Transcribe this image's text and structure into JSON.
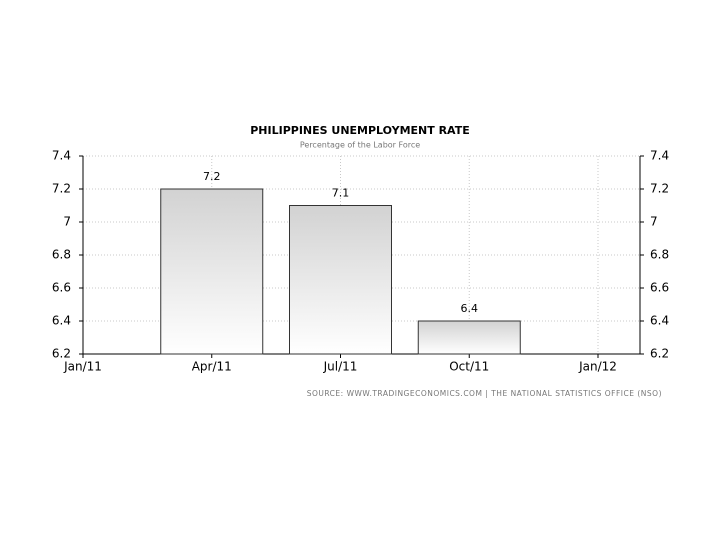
{
  "chart_data": {
    "type": "bar",
    "title": "PHILIPPINES UNEMPLOYMENT RATE",
    "subtitle": "Percentage of the Labor Force",
    "source": "SOURCE: WWW.TRADINGECONOMICS.COM | THE NATIONAL STATISTICS OFFICE (NSO)",
    "categories": [
      "Jan/11",
      "Apr/11",
      "Jul/11",
      "Oct/11",
      "Jan/12"
    ],
    "values": [
      null,
      7.2,
      7.1,
      6.4,
      null
    ],
    "color": "#d2d2d2",
    "ylim": [
      6.2,
      7.4
    ],
    "yticks": [
      6.2,
      6.4,
      6.6,
      6.8,
      7,
      7.2,
      7.4
    ],
    "grid": true
  }
}
